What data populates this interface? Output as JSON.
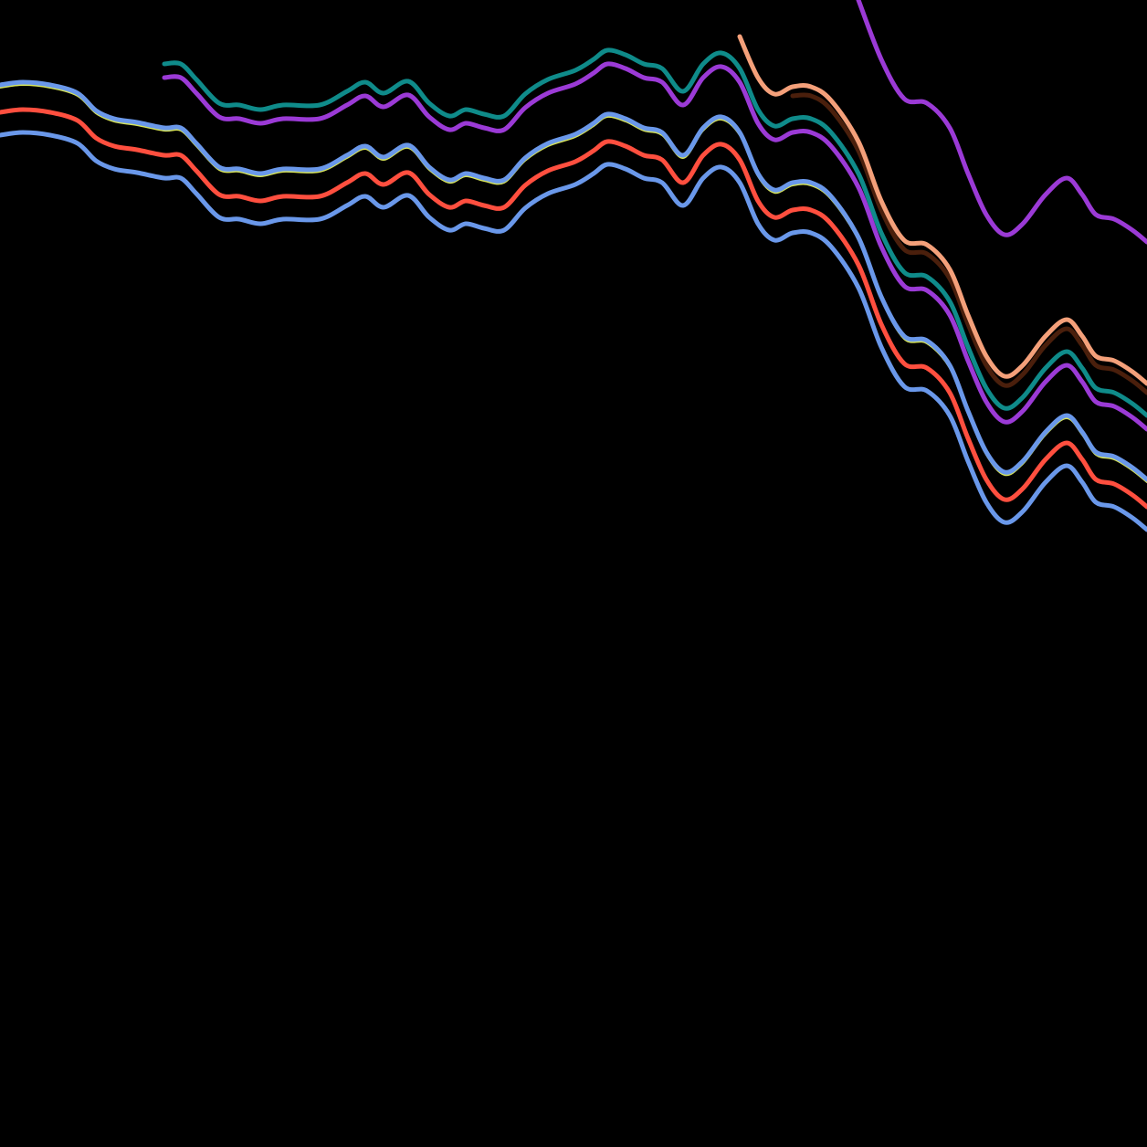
{
  "background": "#000000",
  "lines": [
    {
      "id": "violet-line-top",
      "color": "#9b3ad6",
      "shape": "blueprint",
      "offset": -315
    },
    {
      "id": "dark-brown-line",
      "color": "#4a1f0c",
      "shape": "blueprint",
      "offset": -150
    },
    {
      "id": "salmon-line",
      "color": "#f4a07a",
      "shape": "blueprint",
      "offset": -160
    },
    {
      "id": "teal-line",
      "color": "#0f8b8a",
      "shape": "blueprint",
      "offset": -125
    },
    {
      "id": "violet-line-middle",
      "color": "#9b3ad6",
      "shape": "blueprint",
      "offset": -110
    },
    {
      "id": "yellow-green-accent-line",
      "color": "#d6e35a",
      "shape": "blueprint",
      "offset": -52
    },
    {
      "id": "blue-line-upper",
      "color": "#6a98ea",
      "shape": "blueprint",
      "offset": -55
    },
    {
      "id": "red-line",
      "color": "#ff4f3f",
      "shape": "blueprint",
      "offset": -25
    },
    {
      "id": "blue-line-lower",
      "color": "#6a98ea",
      "shape": "blueprint",
      "offset": 0
    }
  ]
}
